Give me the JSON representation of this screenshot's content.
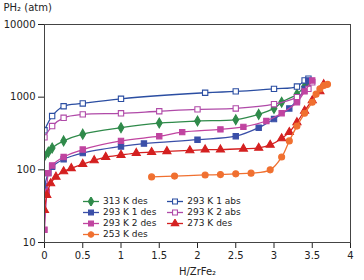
{
  "chart_data": {
    "type": "line",
    "ylabel": "PH₂ (atm)",
    "xlabel": "H/ZrFe₂",
    "log": "y",
    "grid": false,
    "legend": "bottom",
    "xlim": [
      0,
      4
    ],
    "xticks": [
      0,
      0.5,
      1,
      1.5,
      2,
      2.5,
      3,
      3.5,
      4
    ],
    "ylim": [
      10,
      10000
    ],
    "yticks": [
      10,
      100,
      1000,
      10000
    ],
    "series": [
      {
        "name": "313 K des",
        "color": "#2f8a4a",
        "marker": "diamond",
        "x": [
          0,
          0.05,
          0.1,
          0.25,
          0.5,
          1,
          1.5,
          2,
          2.5,
          2.8,
          3,
          3.1,
          3.3,
          3.4,
          3.45
        ],
        "values": [
          155,
          175,
          200,
          250,
          310,
          380,
          440,
          470,
          490,
          580,
          700,
          850,
          1100,
          1400,
          1600
        ]
      },
      {
        "name": "293 K 1 abs",
        "color": "#2b4ea2",
        "marker": "square-open",
        "x": [
          0,
          0.1,
          0.25,
          0.5,
          1,
          2.1,
          2.5,
          3,
          3.3,
          3.4,
          3.45
        ],
        "values": [
          350,
          550,
          750,
          820,
          950,
          1150,
          1200,
          1300,
          1400,
          1700,
          1800
        ]
      },
      {
        "name": "293 K 1 des",
        "color": "#3a4fa8",
        "marker": "square",
        "x": [
          0,
          0.05,
          0.1,
          0.25,
          0.5,
          1,
          1.3,
          2,
          2.5,
          2.8,
          3,
          3.2,
          3.3,
          3.4,
          3.45
        ],
        "values": [
          60,
          90,
          110,
          140,
          170,
          210,
          230,
          260,
          290,
          380,
          500,
          700,
          900,
          1300,
          1700
        ]
      },
      {
        "name": "293 K 2 abs",
        "color": "#b04aa8",
        "marker": "square-open",
        "x": [
          0,
          0.1,
          0.25,
          0.5,
          1,
          1.5,
          2,
          2.5,
          3,
          3.3,
          3.45,
          3.5
        ],
        "values": [
          280,
          400,
          520,
          580,
          600,
          640,
          680,
          700,
          800,
          1000,
          1300,
          1600
        ]
      },
      {
        "name": "293 K 2 des",
        "color": "#c044a0",
        "marker": "square",
        "x": [
          0,
          0.03,
          0.05,
          0.1,
          0.25,
          0.5,
          1,
          1.5,
          1.8,
          2.3,
          2.6,
          2.9,
          3.1,
          3.3,
          3.4,
          3.5
        ],
        "values": [
          15,
          50,
          90,
          115,
          150,
          190,
          250,
          290,
          330,
          360,
          390,
          470,
          600,
          850,
          1200,
          1700
        ]
      },
      {
        "name": "273 K des",
        "color": "#d42020",
        "marker": "triangle",
        "x": [
          0,
          0.03,
          0.08,
          0.15,
          0.25,
          0.35,
          0.5,
          0.65,
          0.8,
          1,
          1.2,
          1.4,
          1.6,
          1.9,
          2.1,
          2.3,
          2.6,
          2.8,
          2.95,
          3.1,
          3.2,
          3.3,
          3.4,
          3.5,
          3.6,
          3.65
        ],
        "values": [
          28,
          45,
          65,
          80,
          95,
          105,
          120,
          135,
          150,
          160,
          170,
          175,
          180,
          185,
          190,
          190,
          195,
          200,
          220,
          270,
          330,
          450,
          650,
          900,
          1200,
          1500
        ]
      },
      {
        "name": "253 K des",
        "color": "#f07030",
        "marker": "circle",
        "x": [
          1.4,
          1.7,
          2.1,
          2.3,
          2.5,
          2.7,
          2.95,
          3.1,
          3.2,
          3.3,
          3.4,
          3.5,
          3.55,
          3.6,
          3.65,
          3.7
        ],
        "values": [
          80,
          82,
          85,
          86,
          88,
          90,
          100,
          150,
          250,
          400,
          600,
          850,
          1100,
          1300,
          1450,
          1500
        ]
      }
    ]
  }
}
